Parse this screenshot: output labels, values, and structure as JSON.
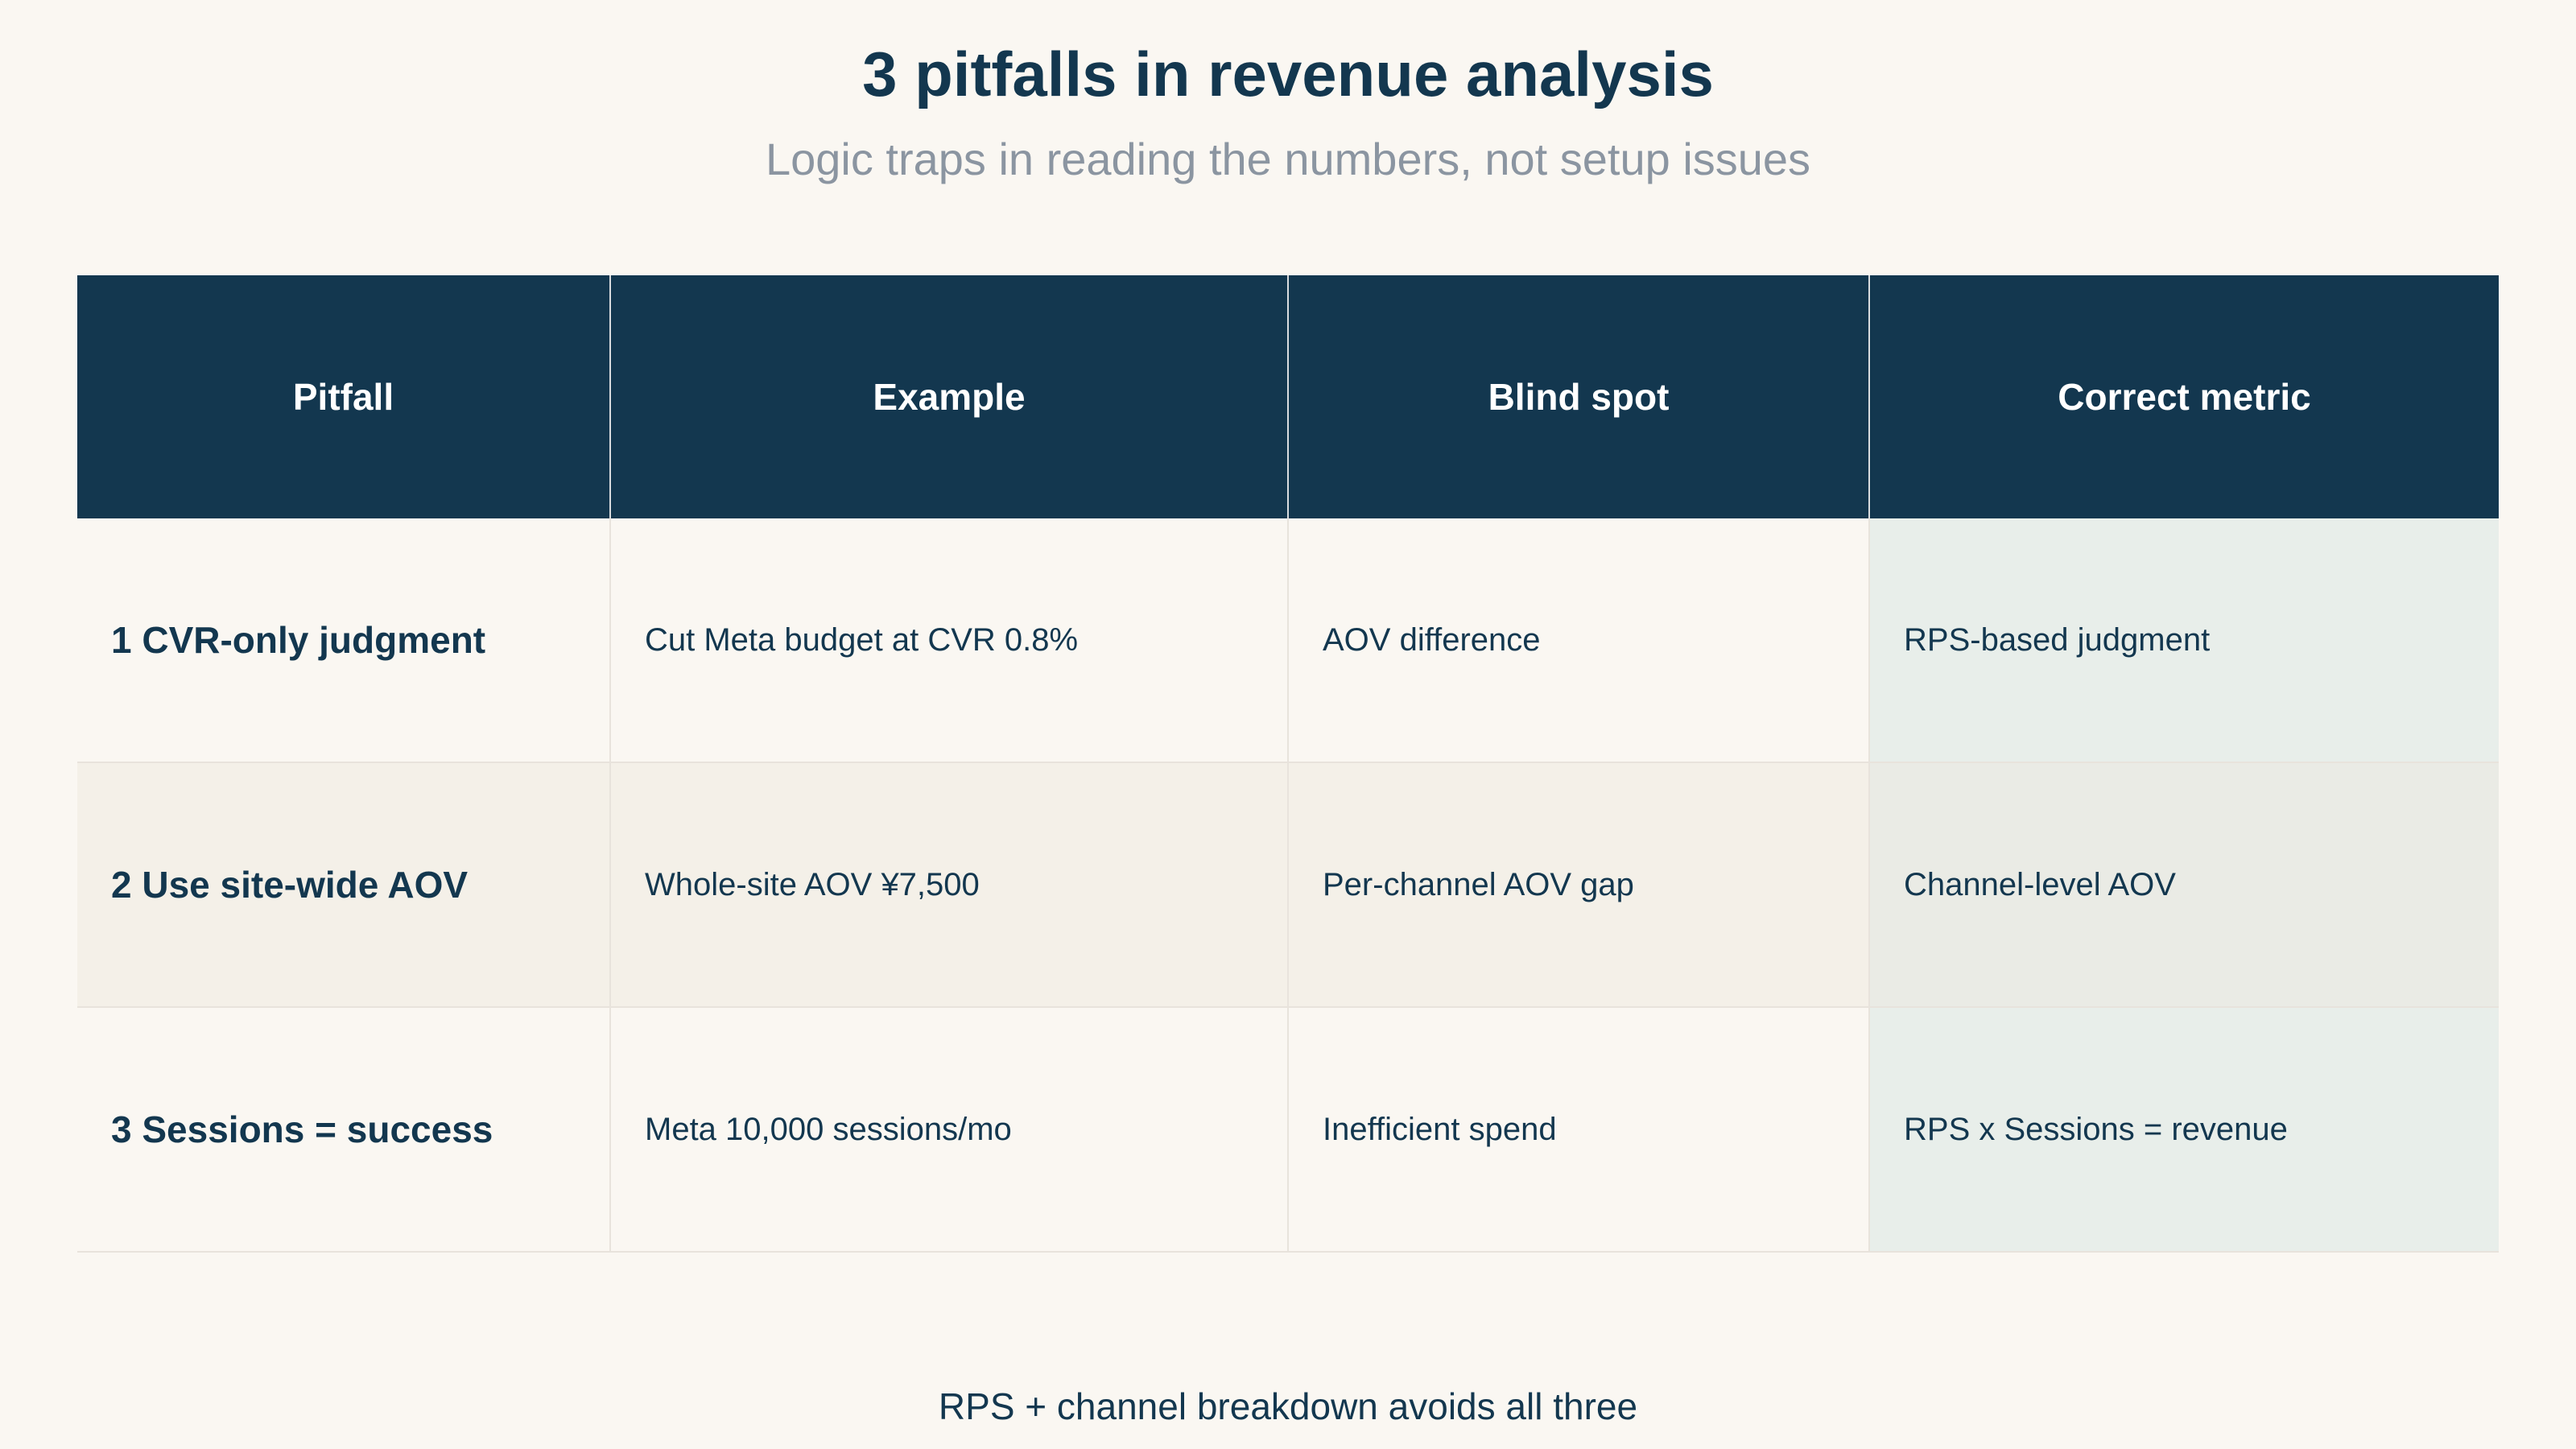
{
  "header": {
    "title": "3 pitfalls in revenue analysis",
    "subtitle": "Logic traps in reading the numbers, not setup issues"
  },
  "table": {
    "columns": [
      "Pitfall",
      "Example",
      "Blind spot",
      "Correct metric"
    ],
    "rows": [
      {
        "pitfall": "1 CVR-only judgment",
        "example": "Cut Meta budget at CVR 0.8%",
        "blind_spot": "AOV difference",
        "correct_metric": "RPS-based judgment"
      },
      {
        "pitfall": "2 Use site-wide AOV",
        "example": "Whole-site AOV ¥7,500",
        "blind_spot": "Per-channel AOV gap",
        "correct_metric": "Channel-level AOV"
      },
      {
        "pitfall": "3 Sessions = success",
        "example": "Meta 10,000 sessions/mo",
        "blind_spot": "Inefficient spend",
        "correct_metric": "RPS x Sessions = revenue"
      }
    ]
  },
  "footer": {
    "text": "RPS + channel breakdown avoids all three"
  },
  "colors": {
    "background": "#faf7f2",
    "header_fill": "#13374f",
    "metric_highlight": "#e8eeea",
    "subtitle_text": "#8b95a1"
  }
}
